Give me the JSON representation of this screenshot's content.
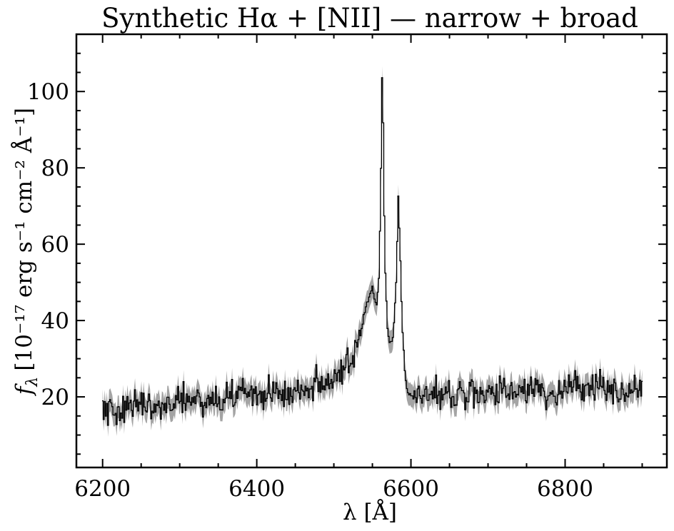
{
  "chart_data": {
    "type": "line",
    "title": "Synthetic Hα + [NII] — narrow + broad",
    "xlabel": "λ [Å]",
    "ylabel_main": "f",
    "ylabel_sub": "λ",
    "ylabel_rest": "[10⁻¹⁷ erg s⁻¹ cm⁻² Å⁻¹]",
    "xlim": [
      6166,
      6932
    ],
    "ylim": [
      1.5,
      115
    ],
    "xticks": [
      6200,
      6400,
      6600,
      6800
    ],
    "xtick_labels": [
      "6200",
      "6400",
      "6600",
      "6800"
    ],
    "yticks": [
      20,
      40,
      60,
      80,
      100
    ],
    "ytick_labels": [
      "20",
      "40",
      "60",
      "80",
      "100"
    ],
    "grid": false,
    "series": [
      {
        "style": "steps-mid",
        "color": "#000000",
        "x": [
          6200,
          6210,
          6220,
          6230,
          6240,
          6250,
          6260,
          6270,
          6280,
          6290,
          6300,
          6310,
          6320,
          6330,
          6340,
          6350,
          6360,
          6370,
          6380,
          6390,
          6400,
          6410,
          6420,
          6430,
          6440,
          6450,
          6460,
          6470,
          6480,
          6490,
          6500,
          6510,
          6520,
          6530,
          6540,
          6545,
          6550,
          6553,
          6556,
          6559,
          6561,
          6562.8,
          6564,
          6566,
          6569,
          6572,
          6575,
          6578,
          6581,
          6583.5,
          6586,
          6589,
          6592,
          6596,
          6600,
          6610,
          6620,
          6630,
          6640,
          6650,
          6660,
          6670,
          6680,
          6690,
          6700,
          6710,
          6720,
          6730,
          6740,
          6750,
          6760,
          6770,
          6780,
          6790,
          6800,
          6810,
          6820,
          6830,
          6840,
          6850,
          6860,
          6870,
          6880,
          6890,
          6900
        ],
        "y": [
          17.0,
          16.5,
          15.8,
          16.6,
          17.4,
          18.0,
          18.3,
          18.2,
          17.6,
          18.0,
          19.6,
          19.8,
          19.1,
          19.0,
          18.8,
          19.3,
          19.7,
          20.2,
          20.6,
          20.7,
          21.0,
          20.8,
          21.0,
          20.5,
          20.6,
          21.8,
          21.9,
          22.3,
          22.4,
          22.6,
          23.5,
          25.3,
          28.5,
          34.0,
          41.8,
          46.2,
          48.8,
          46.7,
          44.3,
          53.7,
          76.4,
          106.5,
          92.0,
          57.6,
          39.7,
          34.8,
          34.2,
          38.1,
          50.1,
          73.2,
          57.4,
          37.7,
          25.8,
          21.4,
          20.5,
          20.3,
          20.7,
          20.5,
          21.0,
          21.1,
          21.0,
          21.0,
          21.1,
          20.9,
          20.6,
          21.0,
          21.3,
          21.9,
          22.1,
          22.2,
          22.2,
          22.3,
          21.4,
          21.4,
          21.7,
          22.4,
          22.6,
          22.1,
          22.5,
          22.6,
          22.9,
          22.4,
          22.3,
          22.5,
          22.1
        ]
      },
      {
        "style": "error-band",
        "color": "#9a9a9a",
        "half_width": 3.0
      }
    ]
  }
}
